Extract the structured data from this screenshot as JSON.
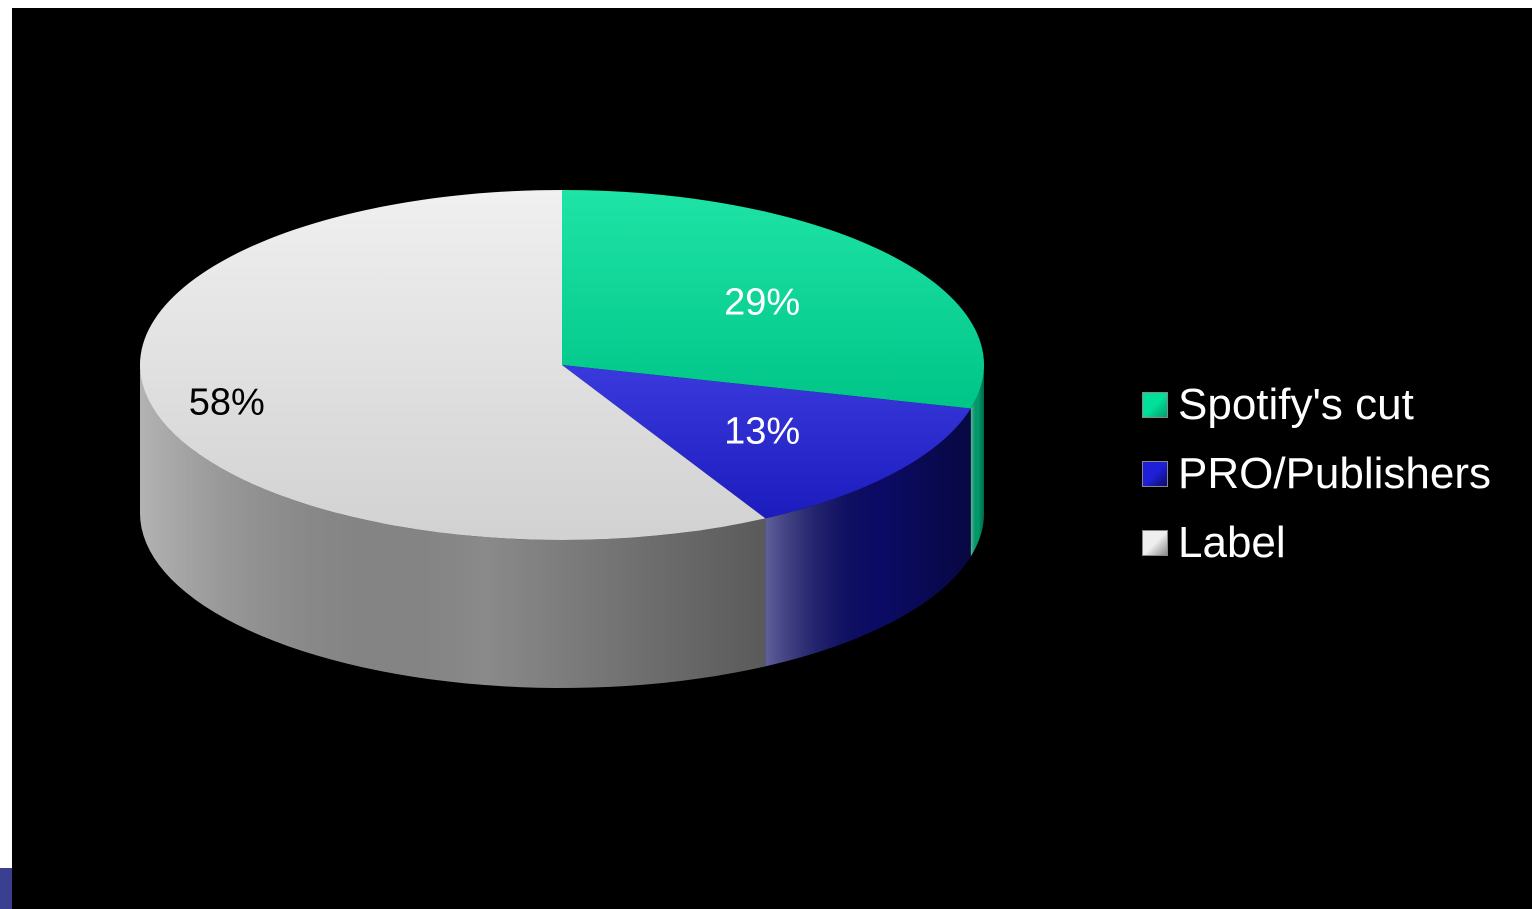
{
  "chart_data": {
    "type": "pie",
    "style": "3d",
    "start_position": "12 o'clock, clockwise",
    "slices": [
      {
        "name": "Spotify's cut",
        "value": 29,
        "label": "29%",
        "color": "#00e09a",
        "side_color": "#009e6c",
        "label_color": "#ffffff"
      },
      {
        "name": "PRO/Publishers",
        "value": 13,
        "label": "13%",
        "color": "#1f1fd8",
        "side_color": "#0b0b66",
        "label_color": "#ffffff"
      },
      {
        "name": "Label",
        "value": 58,
        "label": "58%",
        "color": "#eeeeee",
        "side_color": "#8a8a8a",
        "label_color": "#000000"
      }
    ],
    "legend_position": "right"
  },
  "background_color": "#000000"
}
